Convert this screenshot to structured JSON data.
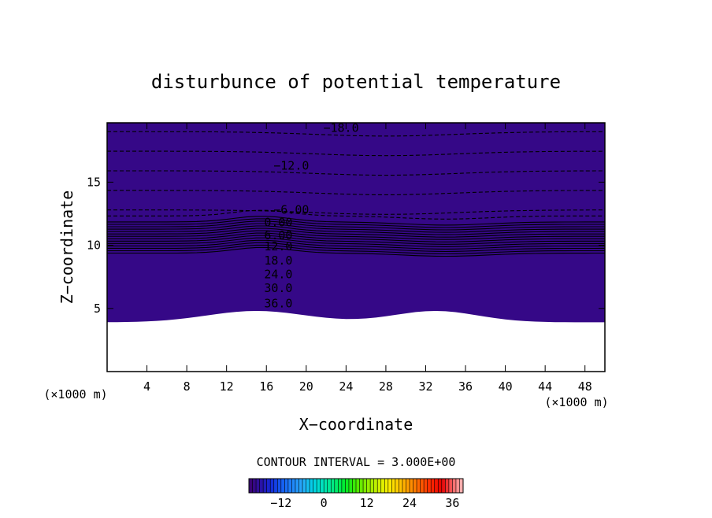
{
  "chart_data": {
    "type": "heatmap",
    "title": "disturbunce of potential temperature",
    "xlabel": "X−coordinate",
    "ylabel": "Z−coordinate",
    "x_unit_label_left": "(×1000 m)",
    "x_unit_label_right": "(×1000 m)",
    "xlim": [
      0,
      50
    ],
    "ylim": [
      0,
      19.7
    ],
    "x_ticks": [
      4,
      8,
      12,
      16,
      20,
      24,
      28,
      32,
      36,
      40,
      44,
      48
    ],
    "y_ticks": [
      5,
      10,
      15
    ],
    "contour_interval_label": "CONTOUR INTERVAL = 3.000E+00",
    "contour_interval": 3,
    "value_range": [
      -21,
      39
    ],
    "contour_labels": [
      {
        "text": "−18.0",
        "x": 23.5,
        "z": 19.3,
        "dashed": true
      },
      {
        "text": "−12.0",
        "x": 18.5,
        "z": 16.3,
        "dashed": true
      },
      {
        "text": "−6.00",
        "x": 18.5,
        "z": 12.8,
        "dashed": true
      },
      {
        "text": "0.00",
        "x": 17.2,
        "z": 11.8,
        "dashed": false
      },
      {
        "text": "6.00",
        "x": 17.2,
        "z": 10.8,
        "dashed": false
      },
      {
        "text": "12.0",
        "x": 17.2,
        "z": 9.9,
        "dashed": false
      },
      {
        "text": "18.0",
        "x": 17.2,
        "z": 8.8,
        "dashed": false
      },
      {
        "text": "24.0",
        "x": 17.2,
        "z": 7.7,
        "dashed": false
      },
      {
        "text": "30.0",
        "x": 17.2,
        "z": 6.6,
        "dashed": false
      },
      {
        "text": "36.0",
        "x": 17.2,
        "z": 5.4,
        "dashed": false
      }
    ],
    "colorbar": {
      "min": -21,
      "max": 39,
      "tick_values": [
        -12,
        0,
        12,
        24,
        36
      ],
      "tick_labels": [
        "−12",
        "0",
        "12",
        "24",
        "36"
      ]
    },
    "grid": false,
    "legend": "colorbar-bottom"
  }
}
